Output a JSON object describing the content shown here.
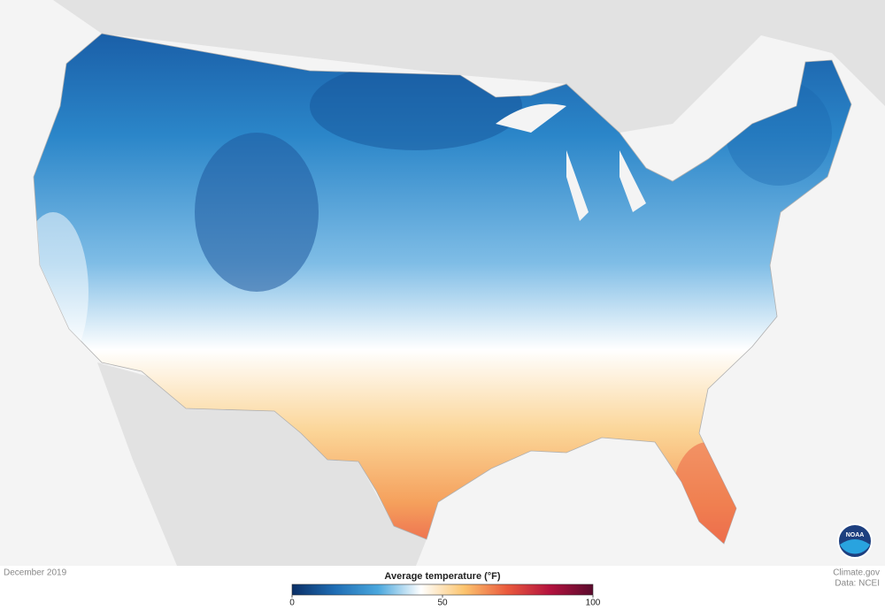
{
  "map": {
    "date": "December 2019",
    "credit": "Climate.gov",
    "source": "Data: NCEI",
    "logo": "NOAA",
    "legend": {
      "title": "Average temperature (°F)",
      "range": [
        0,
        100
      ],
      "ticks": [
        0,
        50,
        100
      ],
      "colors": [
        "#0b2f66",
        "#1f6db4",
        "#4aa7dd",
        "#ffffff",
        "#fcc56f",
        "#ea5a3d",
        "#b3123e",
        "#5a0b2d"
      ]
    }
  }
}
